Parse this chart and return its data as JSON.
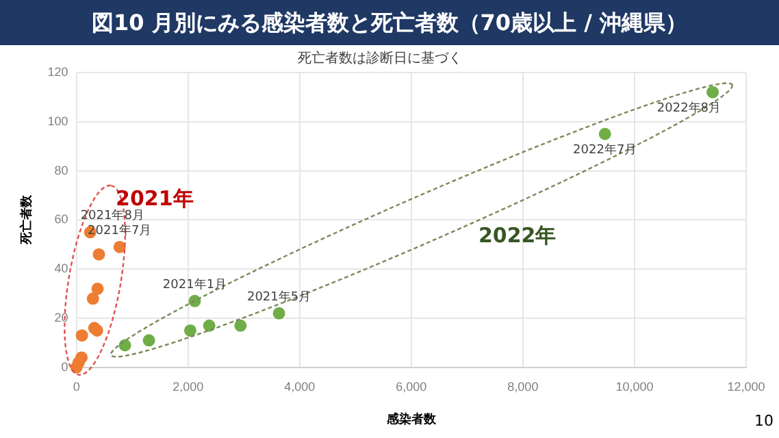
{
  "chart_data": {
    "type": "scatter",
    "title": "図10 月別にみる感染者数と死亡者数（70歳以上 / 沖縄県）",
    "subtitle": "死亡者数は診断日に基づく",
    "xlabel": "感染者数",
    "ylabel": "死亡者数",
    "series": [
      {
        "color": "#ed7d31",
        "x": [
          247,
          774,
          403,
          379,
          296,
          321,
          370,
          99,
          91,
          41,
          0
        ],
        "values": [
          55,
          49,
          46,
          32,
          28,
          16,
          15,
          13,
          4,
          2,
          0
        ]
      },
      {
        "color": "#70ad47",
        "x": [
          870,
          1300,
          2040,
          2120,
          2380,
          2940,
          3630,
          9470,
          11400
        ],
        "values": [
          9,
          11,
          15,
          27,
          17,
          17,
          22,
          95,
          112
        ]
      }
    ],
    "xlim": [
      0,
      12000
    ],
    "xticks": [
      0,
      {
        "value": 2000,
        "label": "2,000"
      },
      {
        "value": 4000,
        "label": "4,000"
      },
      {
        "value": 6000,
        "label": "6,000"
      },
      {
        "value": 8000,
        "label": "8,000"
      },
      {
        "value": 10000,
        "label": "10,000"
      },
      {
        "value": 12000,
        "label": "12,000"
      }
    ],
    "ylim": [
      0,
      120
    ],
    "yticks": [
      0,
      20,
      40,
      60,
      80,
      100,
      120
    ],
    "grid": true,
    "legend": false,
    "marker": "circle",
    "annotations": [
      {
        "text": "2021年8月",
        "x": 247,
        "y": 55
      },
      {
        "text": "2021年7月",
        "x": 774,
        "y": 49
      },
      {
        "text": "2021年1月",
        "x": 2120,
        "y": 27
      },
      {
        "text": "2021年5月",
        "x": 3630,
        "y": 22
      },
      {
        "text": "2022年7月",
        "x": 9470,
        "y": 95
      },
      {
        "text": "2022年8月",
        "x": 11400,
        "y": 112
      },
      "2021年",
      "2022年",
      "10"
    ]
  }
}
